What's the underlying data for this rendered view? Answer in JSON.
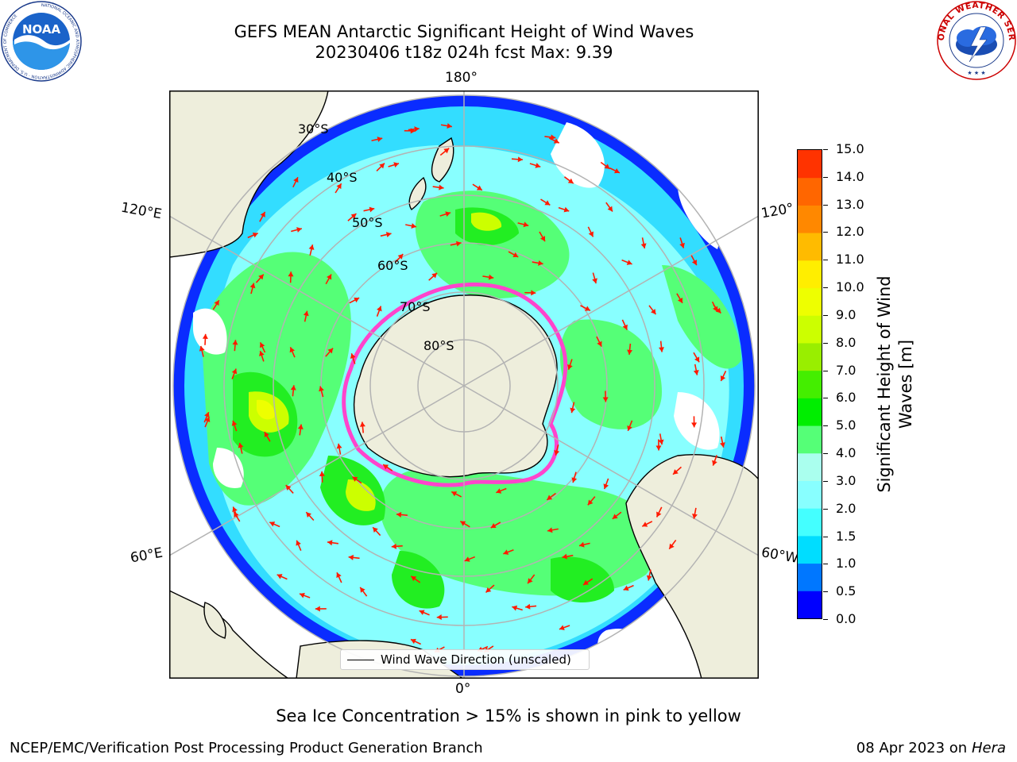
{
  "header": {
    "title_line1": "GEFS MEAN Antarctic Significant Height of Wind Waves",
    "title_line2": "20230406 t18z 024h fcst   Max: 9.39"
  },
  "logos": {
    "noaa": {
      "text": "NOAA",
      "ring_text": "NATIONAL OCEANIC AND ATMOSPHERIC ADMINISTRATION · U.S. DEPARTMENT OF COMMERCE"
    },
    "nws": {
      "ring_text": "NATIONAL WEATHER SERVICE"
    }
  },
  "map": {
    "longitude_labels": {
      "top": "180°",
      "upper_left": "120°E",
      "upper_right": "120°",
      "lower_left": "60°E",
      "lower_right": "60°W",
      "bottom": "0°"
    },
    "latitude_labels": [
      "30°S",
      "40°S",
      "50°S",
      "60°S",
      "70°S",
      "80°S"
    ],
    "land_color": "#eeeedc",
    "arrow_color": "#ff1a00",
    "sea_ice_color": "#ff44cc"
  },
  "colorbar": {
    "label": "Significant Height of Wind Waves [m]",
    "ticks": [
      "15.0",
      "14.0",
      "13.0",
      "12.0",
      "11.0",
      "10.0",
      "9.0",
      "8.0",
      "7.0",
      "6.0",
      "5.0",
      "4.0",
      "3.0",
      "2.0",
      "1.5",
      "1.0",
      "0.5",
      "0.0"
    ],
    "colors_bottom_to_top": [
      "#0000ff",
      "#0077ff",
      "#00ddff",
      "#44ffff",
      "#88ffff",
      "#aaffee",
      "#55ff77",
      "#00ee00",
      "#44ee00",
      "#99ee00",
      "#ccff00",
      "#eeff00",
      "#ffee00",
      "#ffbb00",
      "#ff8800",
      "#ff6600",
      "#ff3300",
      "#ff0000"
    ]
  },
  "legend": {
    "label": "Wind Wave Direction (unscaled)"
  },
  "footer": {
    "sea_ice_note": "Sea Ice Concentration > 15% is shown in pink to yellow",
    "credit": "NCEP/EMC/Verification Post Processing Product Generation Branch",
    "date_prefix": "08 Apr 2023 on ",
    "host": "Hera"
  }
}
